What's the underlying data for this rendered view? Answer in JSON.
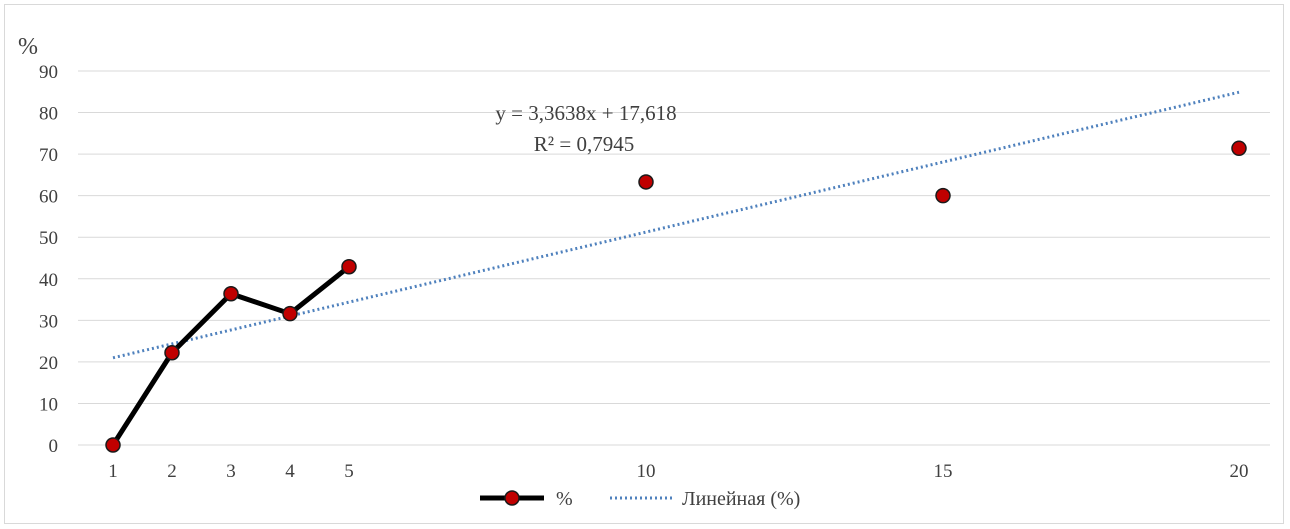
{
  "chart_data": {
    "type": "line",
    "unit_label": "%",
    "x_ticks": [
      1,
      2,
      3,
      4,
      5,
      10,
      15,
      20
    ],
    "y_ticks": [
      0,
      10,
      20,
      30,
      40,
      50,
      60,
      70,
      80,
      90
    ],
    "ylim": [
      0,
      90
    ],
    "grid": "horizontal",
    "series": [
      {
        "name": "%",
        "color": "#000000",
        "marker_color": "#c00000",
        "line_segment_x": [
          1,
          2,
          3,
          4,
          5
        ],
        "points": [
          {
            "x": 1,
            "y": 0
          },
          {
            "x": 2,
            "y": 22.2
          },
          {
            "x": 3,
            "y": 36.4
          },
          {
            "x": 4,
            "y": 31.6
          },
          {
            "x": 5,
            "y": 42.9
          },
          {
            "x": 10,
            "y": 63.3
          },
          {
            "x": 15,
            "y": 60.0
          },
          {
            "x": 20,
            "y": 71.4
          }
        ]
      }
    ],
    "trendline": {
      "name": "Линейная (%)",
      "color": "#4f81bd",
      "slope": 3.3638,
      "intercept": 17.618,
      "x_range": [
        1,
        20
      ],
      "equation": "y = 3,3638x + 17,618",
      "r2": "R² = 0,7945"
    },
    "legend": {
      "placement": "bottom",
      "items": [
        "%",
        "Линейная (%)"
      ]
    }
  }
}
